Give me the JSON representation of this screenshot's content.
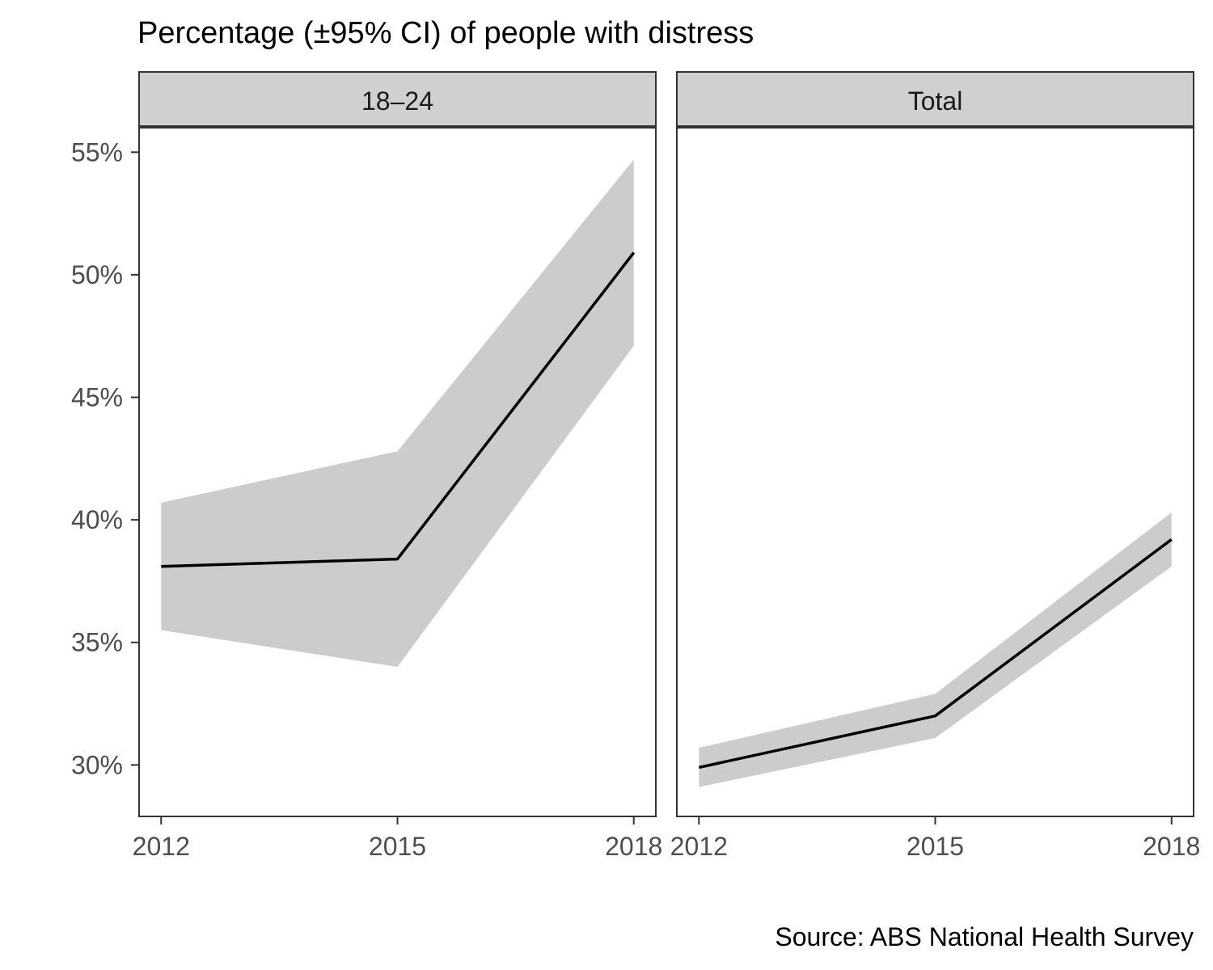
{
  "chart_data": {
    "type": "line",
    "title": "Percentage (±95% CI) of people with distress",
    "caption": "Source: ABS National Health Survey",
    "xlabel": "",
    "ylabel": "",
    "x": [
      2012,
      2015,
      2018
    ],
    "x_tick_labels": [
      "2012",
      "2015",
      "2018"
    ],
    "xlim": [
      2011.72,
      2018.28
    ],
    "ylim": [
      27.9,
      56.0
    ],
    "y_ticks": [
      30,
      35,
      40,
      45,
      50,
      55
    ],
    "y_tick_labels": [
      "30%",
      "35%",
      "40%",
      "45%",
      "50%",
      "55%"
    ],
    "grid": false,
    "legend": "none",
    "colors": {
      "line": "#000000",
      "ribbon": "#cccccc",
      "strip": "#d0d0d0",
      "border": "#333333"
    },
    "panels": [
      {
        "label": "18–24",
        "values": [
          38.1,
          38.4,
          50.9
        ],
        "lower": [
          35.5,
          34.0,
          47.1
        ],
        "upper": [
          40.7,
          42.8,
          54.7
        ]
      },
      {
        "label": "Total",
        "values": [
          29.9,
          32.0,
          39.2
        ],
        "lower": [
          29.1,
          31.1,
          38.1
        ],
        "upper": [
          30.7,
          32.9,
          40.3
        ]
      }
    ]
  }
}
